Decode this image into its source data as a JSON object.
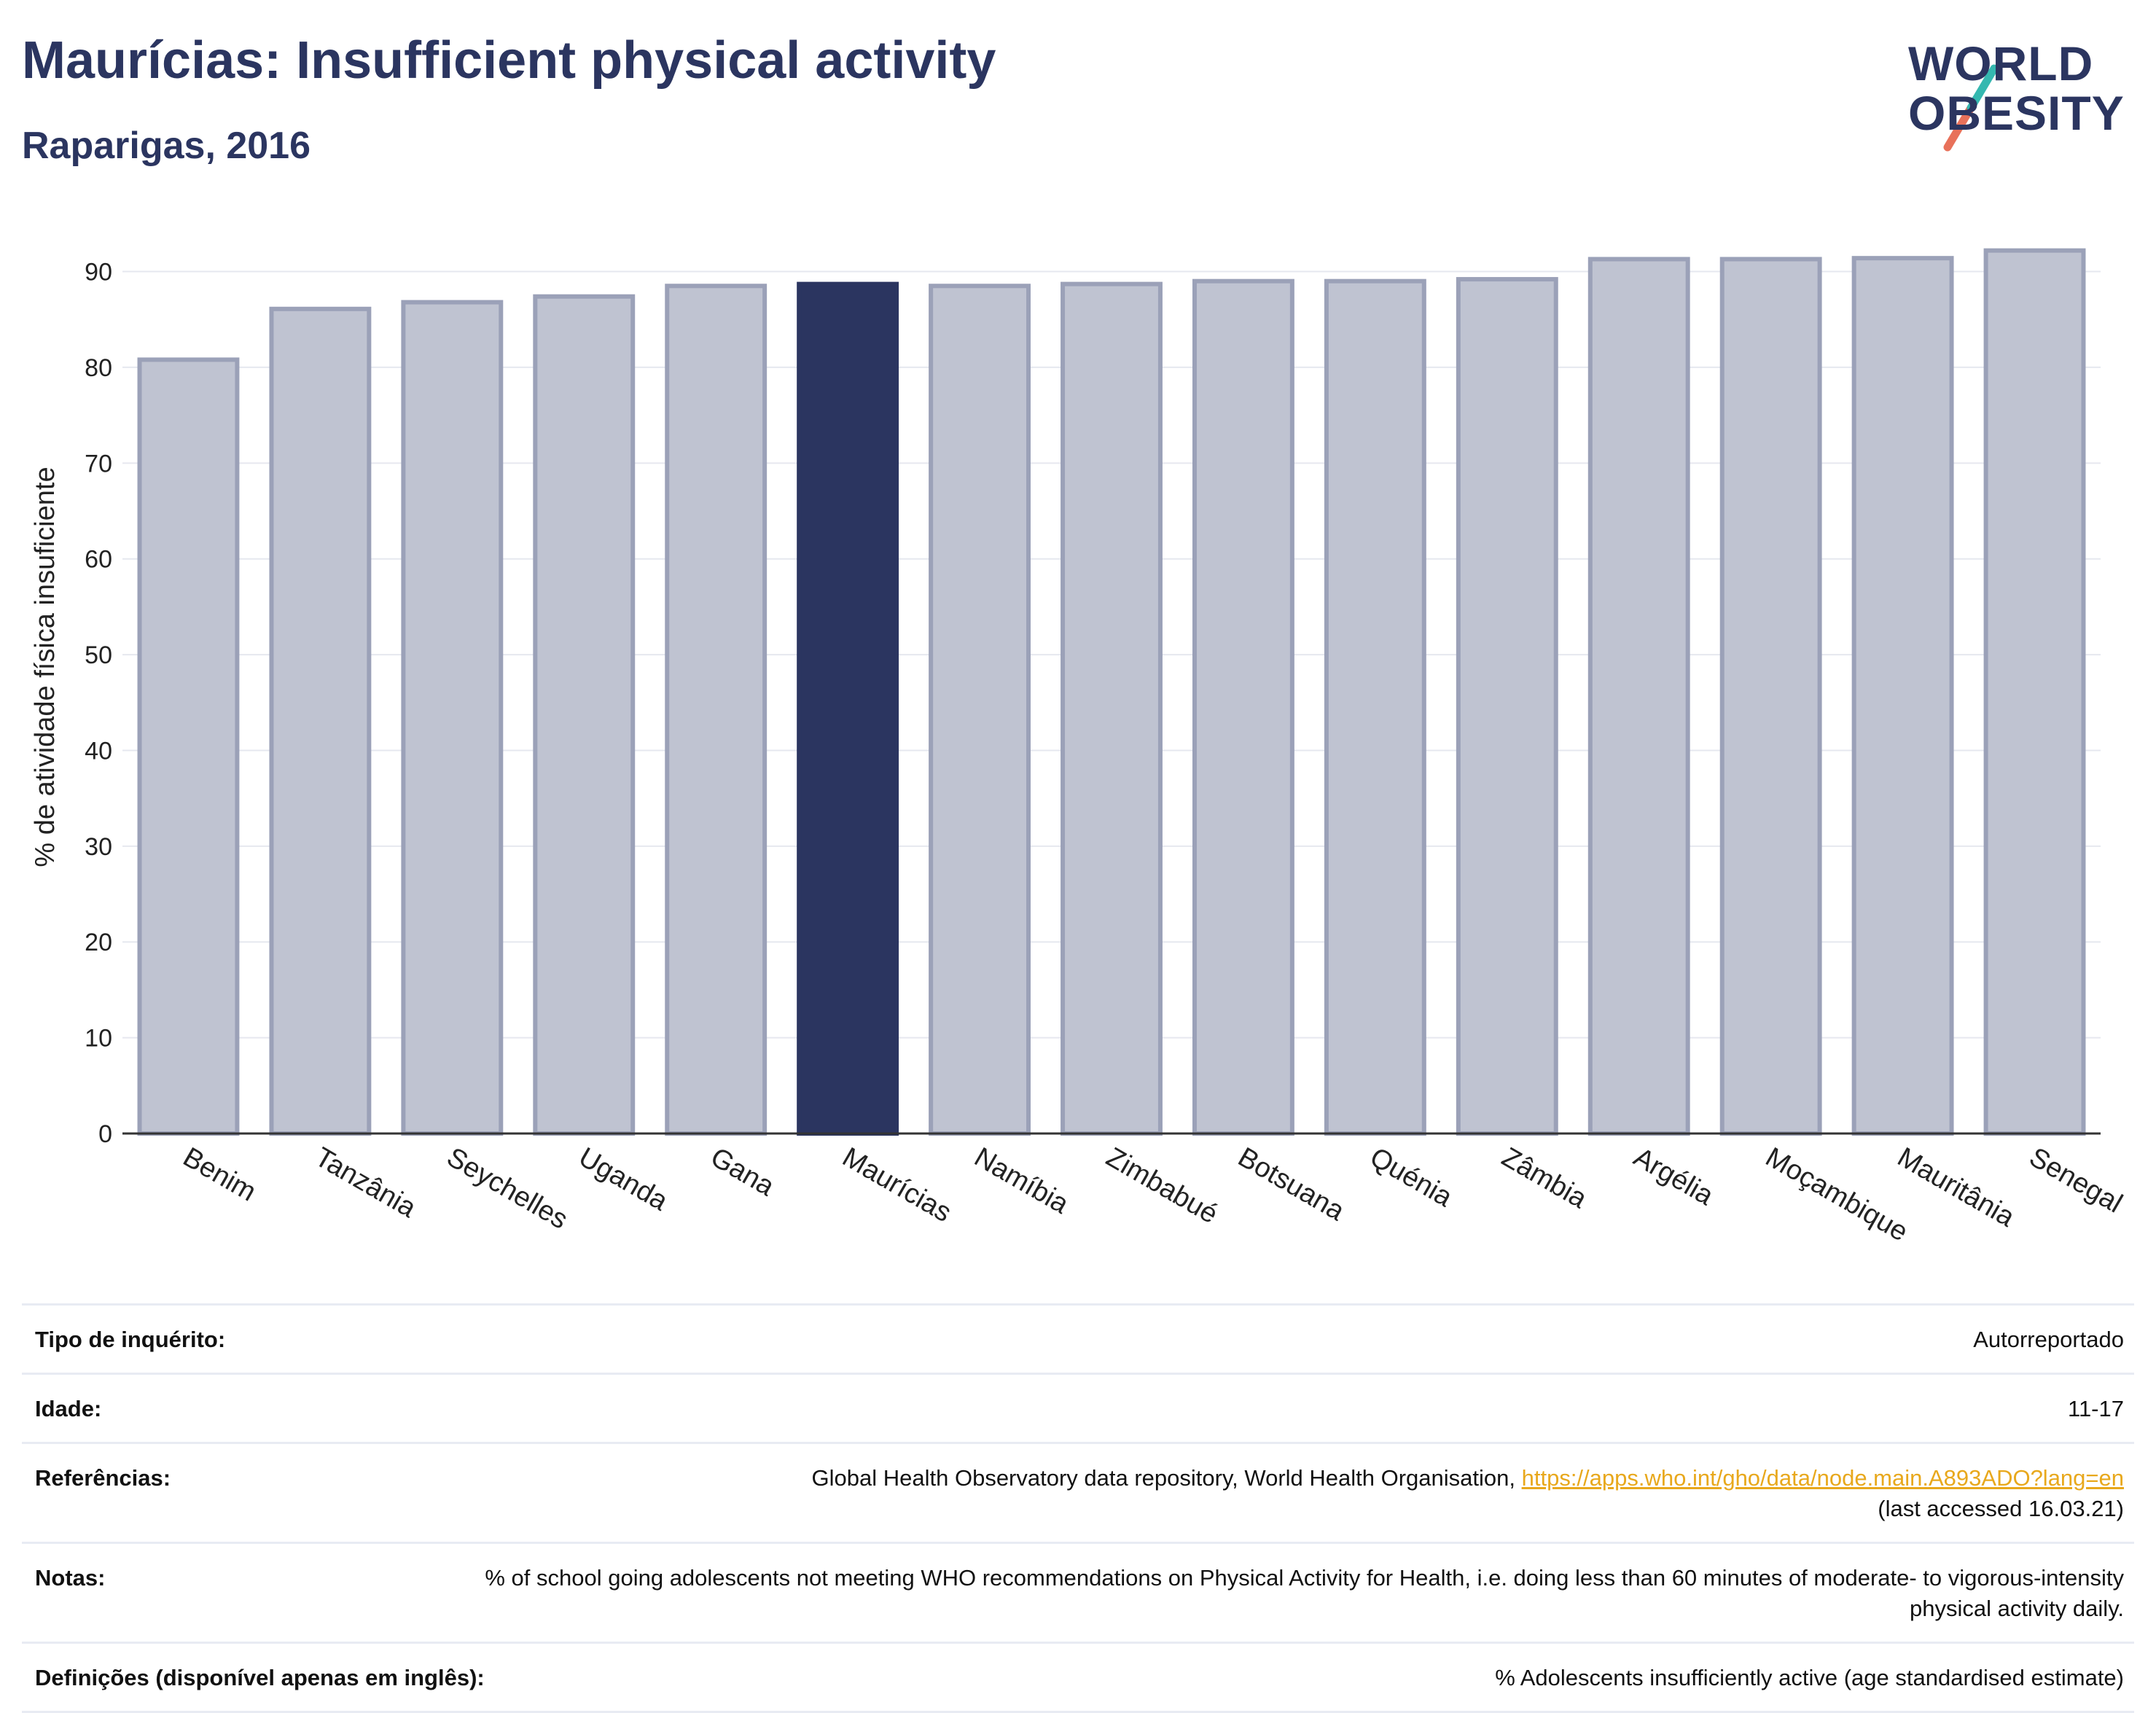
{
  "header": {
    "title": "Maurícias: Insufficient physical activity",
    "subtitle": "Raparigas, 2016"
  },
  "logo": {
    "line1": "WORLD",
    "line2": "OBESITY",
    "colors": {
      "text": "#2b3560",
      "slash_top": "#35b8b0",
      "slash_bottom": "#e8715a"
    }
  },
  "colors": {
    "bar": "#bfc3d1",
    "bar_stroke": "#9ba1b8",
    "highlight": "#2b3560",
    "grid": "#e6e8ef",
    "axis": "#333333"
  },
  "chart_data": {
    "type": "bar",
    "title": "",
    "xlabel": "",
    "ylabel": "% de atividade física insuficiente",
    "ylim": [
      0,
      94
    ],
    "yticks": [
      0,
      10,
      20,
      30,
      40,
      50,
      60,
      70,
      80,
      90
    ],
    "grid": true,
    "highlight": "Maurícias",
    "categories": [
      "Benim",
      "Tanzânia",
      "Seychelles",
      "Uganda",
      "Gana",
      "Maurícias",
      "Namíbia",
      "Zimbabué",
      "Botsuana",
      "Quénia",
      "Zâmbia",
      "Argélia",
      "Moçambique",
      "Mauritânia",
      "Senegal"
    ],
    "values": [
      80.8,
      86.1,
      86.8,
      87.4,
      88.5,
      88.7,
      88.5,
      88.7,
      89.0,
      89.0,
      89.2,
      91.3,
      91.3,
      91.4,
      92.2
    ]
  },
  "info": [
    {
      "label": "Tipo de inquérito:",
      "value": "Autorreportado"
    },
    {
      "label": "Idade:",
      "value": "11-17"
    },
    {
      "label": "Referências:",
      "value": "Global Health Observatory data repository, World Health Organisation, ",
      "link": "https://apps.who.int/gho/data/node.main.A893ADO?lang=en",
      "value2": "(last accessed 16.03.21)"
    },
    {
      "label": "Notas:",
      "value": "% of school going adolescents not meeting WHO recommendations on Physical Activity for Health, i.e. doing less than 60 minutes of moderate- to vigorous-intensity physical activity daily."
    },
    {
      "label": "Definições (disponível apenas em inglês):",
      "value": "% Adolescents insufficiently active (age standardised estimate)"
    }
  ]
}
